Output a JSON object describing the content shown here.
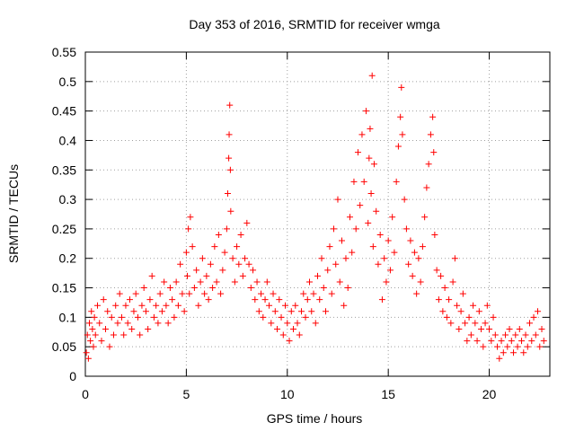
{
  "chart_data": {
    "type": "scatter",
    "title": "Day 353 of 2016, SRMTID for receiver wmga",
    "xlabel": "GPS time / hours",
    "ylabel": "SRMTID / TECUs",
    "xlim": [
      0,
      23
    ],
    "ylim": [
      0,
      0.55
    ],
    "grid": true,
    "marker": "+",
    "marker_color": "#ff0000",
    "xticks": [
      0,
      5,
      10,
      15,
      20
    ],
    "xtick_labels": [
      "0",
      "5",
      "10",
      "15",
      "20"
    ],
    "yticks": [
      0,
      0.05,
      0.1,
      0.15,
      0.2,
      0.25,
      0.3,
      0.35,
      0.4,
      0.45,
      0.5,
      0.55
    ],
    "ytick_labels": [
      "0",
      "0.05",
      "0.1",
      "0.15",
      "0.2",
      "0.25",
      "0.3",
      "0.35",
      "0.4",
      "0.45",
      "0.5",
      "0.55"
    ],
    "series": [
      {
        "name": "SRMTID",
        "points": [
          [
            0.05,
            0.04
          ],
          [
            0.1,
            0.07
          ],
          [
            0.15,
            0.03
          ],
          [
            0.2,
            0.09
          ],
          [
            0.25,
            0.06
          ],
          [
            0.3,
            0.11
          ],
          [
            0.35,
            0.08
          ],
          [
            0.4,
            0.05
          ],
          [
            0.45,
            0.1
          ],
          [
            0.5,
            0.07
          ],
          [
            0.6,
            0.12
          ],
          [
            0.7,
            0.09
          ],
          [
            0.8,
            0.06
          ],
          [
            0.9,
            0.13
          ],
          [
            1.0,
            0.08
          ],
          [
            1.1,
            0.11
          ],
          [
            1.2,
            0.05
          ],
          [
            1.3,
            0.1
          ],
          [
            1.4,
            0.07
          ],
          [
            1.5,
            0.12
          ],
          [
            1.6,
            0.09
          ],
          [
            1.7,
            0.14
          ],
          [
            1.8,
            0.1
          ],
          [
            1.9,
            0.07
          ],
          [
            2.0,
            0.12
          ],
          [
            2.1,
            0.09
          ],
          [
            2.2,
            0.13
          ],
          [
            2.3,
            0.08
          ],
          [
            2.4,
            0.11
          ],
          [
            2.5,
            0.14
          ],
          [
            2.6,
            0.1
          ],
          [
            2.7,
            0.07
          ],
          [
            2.8,
            0.12
          ],
          [
            2.9,
            0.15
          ],
          [
            3.0,
            0.11
          ],
          [
            3.1,
            0.08
          ],
          [
            3.2,
            0.13
          ],
          [
            3.3,
            0.17
          ],
          [
            3.4,
            0.1
          ],
          [
            3.5,
            0.12
          ],
          [
            3.6,
            0.09
          ],
          [
            3.7,
            0.14
          ],
          [
            3.8,
            0.11
          ],
          [
            3.9,
            0.16
          ],
          [
            4.0,
            0.12
          ],
          [
            4.1,
            0.09
          ],
          [
            4.2,
            0.15
          ],
          [
            4.3,
            0.13
          ],
          [
            4.4,
            0.1
          ],
          [
            4.5,
            0.16
          ],
          [
            4.6,
            0.12
          ],
          [
            4.7,
            0.19
          ],
          [
            4.8,
            0.14
          ],
          [
            4.9,
            0.11
          ],
          [
            5.0,
            0.21
          ],
          [
            5.05,
            0.17
          ],
          [
            5.1,
            0.25
          ],
          [
            5.15,
            0.14
          ],
          [
            5.2,
            0.27
          ],
          [
            5.3,
            0.22
          ],
          [
            5.4,
            0.15
          ],
          [
            5.5,
            0.18
          ],
          [
            5.6,
            0.12
          ],
          [
            5.7,
            0.16
          ],
          [
            5.8,
            0.2
          ],
          [
            5.9,
            0.14
          ],
          [
            6.0,
            0.17
          ],
          [
            6.1,
            0.13
          ],
          [
            6.2,
            0.19
          ],
          [
            6.3,
            0.15
          ],
          [
            6.4,
            0.22
          ],
          [
            6.5,
            0.16
          ],
          [
            6.6,
            0.24
          ],
          [
            6.7,
            0.14
          ],
          [
            6.8,
            0.18
          ],
          [
            6.9,
            0.21
          ],
          [
            7.0,
            0.25
          ],
          [
            7.05,
            0.31
          ],
          [
            7.1,
            0.37
          ],
          [
            7.12,
            0.41
          ],
          [
            7.15,
            0.46
          ],
          [
            7.18,
            0.35
          ],
          [
            7.2,
            0.28
          ],
          [
            7.3,
            0.2
          ],
          [
            7.4,
            0.16
          ],
          [
            7.5,
            0.22
          ],
          [
            7.6,
            0.19
          ],
          [
            7.7,
            0.24
          ],
          [
            7.8,
            0.17
          ],
          [
            7.9,
            0.2
          ],
          [
            8.0,
            0.26
          ],
          [
            8.1,
            0.19
          ],
          [
            8.2,
            0.15
          ],
          [
            8.3,
            0.18
          ],
          [
            8.4,
            0.13
          ],
          [
            8.5,
            0.16
          ],
          [
            8.6,
            0.11
          ],
          [
            8.7,
            0.14
          ],
          [
            8.8,
            0.1
          ],
          [
            8.9,
            0.13
          ],
          [
            9.0,
            0.16
          ],
          [
            9.1,
            0.12
          ],
          [
            9.2,
            0.09
          ],
          [
            9.3,
            0.14
          ],
          [
            9.4,
            0.11
          ],
          [
            9.5,
            0.08
          ],
          [
            9.6,
            0.13
          ],
          [
            9.7,
            0.1
          ],
          [
            9.8,
            0.07
          ],
          [
            9.9,
            0.12
          ],
          [
            10.0,
            0.09
          ],
          [
            10.1,
            0.06
          ],
          [
            10.2,
            0.11
          ],
          [
            10.3,
            0.08
          ],
          [
            10.4,
            0.12
          ],
          [
            10.5,
            0.09
          ],
          [
            10.6,
            0.07
          ],
          [
            10.7,
            0.11
          ],
          [
            10.8,
            0.14
          ],
          [
            10.9,
            0.1
          ],
          [
            11.0,
            0.13
          ],
          [
            11.1,
            0.16
          ],
          [
            11.2,
            0.11
          ],
          [
            11.3,
            0.14
          ],
          [
            11.4,
            0.09
          ],
          [
            11.5,
            0.17
          ],
          [
            11.6,
            0.13
          ],
          [
            11.7,
            0.2
          ],
          [
            11.8,
            0.15
          ],
          [
            11.9,
            0.11
          ],
          [
            12.0,
            0.18
          ],
          [
            12.1,
            0.22
          ],
          [
            12.2,
            0.14
          ],
          [
            12.3,
            0.25
          ],
          [
            12.4,
            0.19
          ],
          [
            12.5,
            0.3
          ],
          [
            12.6,
            0.16
          ],
          [
            12.7,
            0.23
          ],
          [
            12.8,
            0.12
          ],
          [
            12.9,
            0.2
          ],
          [
            13.0,
            0.15
          ],
          [
            13.1,
            0.27
          ],
          [
            13.2,
            0.21
          ],
          [
            13.3,
            0.33
          ],
          [
            13.4,
            0.25
          ],
          [
            13.5,
            0.38
          ],
          [
            13.6,
            0.29
          ],
          [
            13.7,
            0.41
          ],
          [
            13.8,
            0.33
          ],
          [
            13.9,
            0.45
          ],
          [
            14.0,
            0.26
          ],
          [
            14.05,
            0.37
          ],
          [
            14.1,
            0.42
          ],
          [
            14.15,
            0.31
          ],
          [
            14.2,
            0.51
          ],
          [
            14.25,
            0.22
          ],
          [
            14.3,
            0.36
          ],
          [
            14.4,
            0.28
          ],
          [
            14.5,
            0.19
          ],
          [
            14.6,
            0.24
          ],
          [
            14.7,
            0.13
          ],
          [
            14.8,
            0.2
          ],
          [
            14.9,
            0.16
          ],
          [
            15.0,
            0.23
          ],
          [
            15.1,
            0.18
          ],
          [
            15.2,
            0.27
          ],
          [
            15.3,
            0.21
          ],
          [
            15.4,
            0.33
          ],
          [
            15.5,
            0.39
          ],
          [
            15.6,
            0.44
          ],
          [
            15.65,
            0.49
          ],
          [
            15.7,
            0.41
          ],
          [
            15.8,
            0.3
          ],
          [
            15.9,
            0.25
          ],
          [
            16.0,
            0.19
          ],
          [
            16.1,
            0.23
          ],
          [
            16.2,
            0.17
          ],
          [
            16.3,
            0.21
          ],
          [
            16.4,
            0.14
          ],
          [
            16.5,
            0.2
          ],
          [
            16.6,
            0.16
          ],
          [
            16.7,
            0.22
          ],
          [
            16.8,
            0.27
          ],
          [
            16.9,
            0.32
          ],
          [
            17.0,
            0.36
          ],
          [
            17.1,
            0.41
          ],
          [
            17.2,
            0.44
          ],
          [
            17.25,
            0.38
          ],
          [
            17.3,
            0.24
          ],
          [
            17.4,
            0.18
          ],
          [
            17.5,
            0.13
          ],
          [
            17.6,
            0.17
          ],
          [
            17.7,
            0.11
          ],
          [
            17.8,
            0.15
          ],
          [
            17.9,
            0.1
          ],
          [
            18.0,
            0.13
          ],
          [
            18.1,
            0.09
          ],
          [
            18.2,
            0.16
          ],
          [
            18.3,
            0.2
          ],
          [
            18.4,
            0.12
          ],
          [
            18.5,
            0.08
          ],
          [
            18.6,
            0.11
          ],
          [
            18.7,
            0.14
          ],
          [
            18.8,
            0.09
          ],
          [
            18.9,
            0.06
          ],
          [
            19.0,
            0.1
          ],
          [
            19.1,
            0.07
          ],
          [
            19.2,
            0.12
          ],
          [
            19.3,
            0.09
          ],
          [
            19.4,
            0.06
          ],
          [
            19.5,
            0.11
          ],
          [
            19.6,
            0.08
          ],
          [
            19.7,
            0.05
          ],
          [
            19.8,
            0.09
          ],
          [
            19.9,
            0.12
          ],
          [
            20.0,
            0.08
          ],
          [
            20.1,
            0.06
          ],
          [
            20.2,
            0.1
          ],
          [
            20.3,
            0.07
          ],
          [
            20.4,
            0.05
          ],
          [
            20.5,
            0.03
          ],
          [
            20.6,
            0.06
          ],
          [
            20.7,
            0.04
          ],
          [
            20.8,
            0.07
          ],
          [
            20.9,
            0.05
          ],
          [
            21.0,
            0.08
          ],
          [
            21.1,
            0.06
          ],
          [
            21.2,
            0.04
          ],
          [
            21.3,
            0.07
          ],
          [
            21.4,
            0.05
          ],
          [
            21.5,
            0.08
          ],
          [
            21.6,
            0.06
          ],
          [
            21.7,
            0.04
          ],
          [
            21.8,
            0.07
          ],
          [
            21.9,
            0.05
          ],
          [
            22.0,
            0.09
          ],
          [
            22.1,
            0.06
          ],
          [
            22.2,
            0.1
          ],
          [
            22.3,
            0.07
          ],
          [
            22.4,
            0.11
          ],
          [
            22.5,
            0.05
          ],
          [
            22.6,
            0.08
          ],
          [
            22.7,
            0.06
          ]
        ]
      }
    ]
  }
}
